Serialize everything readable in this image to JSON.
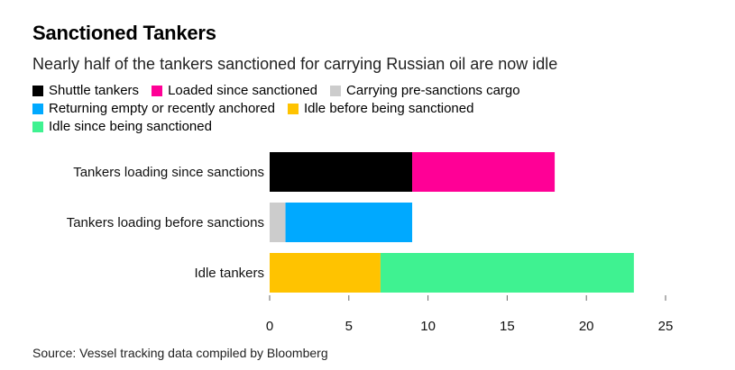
{
  "chart_data": {
    "type": "bar",
    "orientation": "horizontal",
    "stacked": true,
    "title": "Sanctioned Tankers",
    "subtitle": "Nearly half of the tankers sanctioned for carrying Russian oil are now idle",
    "source": "Source: Vessel tracking data compiled by Bloomberg",
    "categories": [
      "Tankers loading since sanctions",
      "Tankers loading before sanctions",
      "Idle tankers"
    ],
    "series": [
      {
        "name": "Shuttle tankers",
        "color": "#000000",
        "values": [
          9,
          0,
          0
        ]
      },
      {
        "name": "Loaded since sanctioned",
        "color": "#ff0096",
        "values": [
          9,
          0,
          0
        ]
      },
      {
        "name": "Carrying pre-sanctions cargo",
        "color": "#cccccc",
        "values": [
          0,
          1,
          0
        ]
      },
      {
        "name": "Returning empty or recently anchored",
        "color": "#00a9ff",
        "values": [
          0,
          8,
          0
        ]
      },
      {
        "name": "Idle before being sanctioned",
        "color": "#ffc300",
        "values": [
          0,
          0,
          7
        ]
      },
      {
        "name": "Idle since being sanctioned",
        "color": "#3ff291",
        "values": [
          0,
          0,
          16
        ]
      }
    ],
    "xlim": [
      0,
      25
    ],
    "xticks": [
      "0",
      "5",
      "10",
      "15",
      "20",
      "25"
    ],
    "xlabel": "",
    "ylabel": "",
    "grid": false,
    "legend_position": "top"
  }
}
